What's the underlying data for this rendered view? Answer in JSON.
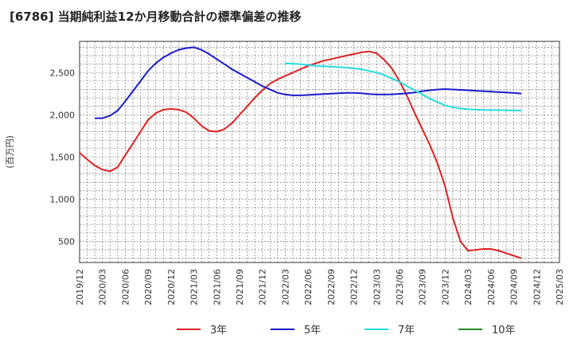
{
  "title": "[6786]  当期純利益12か月移動合計の標準偏差の推移",
  "chart_data": {
    "type": "line",
    "title": "[6786]  当期純利益12か月移動合計の標準偏差の推移",
    "xlabel": "",
    "ylabel": "(百万円)",
    "x_ticks": [
      "2019/12",
      "2020/03",
      "2020/06",
      "2020/09",
      "2020/12",
      "2021/03",
      "2021/06",
      "2021/09",
      "2021/12",
      "2022/03",
      "2022/06",
      "2022/09",
      "2022/12",
      "2023/03",
      "2023/06",
      "2023/09",
      "2023/12",
      "2024/03",
      "2024/06",
      "2024/09",
      "2024/12",
      "2025/03"
    ],
    "y_ticks": [
      500,
      1000,
      1500,
      2000,
      2500
    ],
    "y_tick_labels": [
      "500",
      "1,000",
      "1,500",
      "2,000",
      "2,500"
    ],
    "xlim": [
      "2019/12",
      "2025/03"
    ],
    "ylim": [
      250,
      2870
    ],
    "grid": true,
    "legend_position": "bottom",
    "series": [
      {
        "name": "3年",
        "color": "#dd2222",
        "points": [
          [
            "2019/12",
            1550
          ],
          [
            "2020/01",
            1470
          ],
          [
            "2020/02",
            1400
          ],
          [
            "2020/03",
            1350
          ],
          [
            "2020/04",
            1330
          ],
          [
            "2020/05",
            1380
          ],
          [
            "2020/06",
            1520
          ],
          [
            "2020/07",
            1660
          ],
          [
            "2020/08",
            1800
          ],
          [
            "2020/09",
            1940
          ],
          [
            "2020/10",
            2020
          ],
          [
            "2020/11",
            2060
          ],
          [
            "2020/12",
            2070
          ],
          [
            "2021/01",
            2060
          ],
          [
            "2021/02",
            2030
          ],
          [
            "2021/03",
            1960
          ],
          [
            "2021/04",
            1870
          ],
          [
            "2021/05",
            1810
          ],
          [
            "2021/06",
            1800
          ],
          [
            "2021/07",
            1830
          ],
          [
            "2021/08",
            1900
          ],
          [
            "2021/09",
            2000
          ],
          [
            "2021/10",
            2100
          ],
          [
            "2021/11",
            2200
          ],
          [
            "2021/12",
            2290
          ],
          [
            "2022/01",
            2370
          ],
          [
            "2022/02",
            2420
          ],
          [
            "2022/03",
            2460
          ],
          [
            "2022/04",
            2500
          ],
          [
            "2022/05",
            2540
          ],
          [
            "2022/06",
            2580
          ],
          [
            "2022/07",
            2610
          ],
          [
            "2022/08",
            2640
          ],
          [
            "2022/09",
            2660
          ],
          [
            "2022/10",
            2680
          ],
          [
            "2022/11",
            2700
          ],
          [
            "2022/12",
            2720
          ],
          [
            "2023/01",
            2740
          ],
          [
            "2023/02",
            2750
          ],
          [
            "2023/03",
            2730
          ],
          [
            "2023/04",
            2650
          ],
          [
            "2023/05",
            2550
          ],
          [
            "2023/06",
            2400
          ],
          [
            "2023/07",
            2220
          ],
          [
            "2023/08",
            2020
          ],
          [
            "2023/09",
            1830
          ],
          [
            "2023/10",
            1640
          ],
          [
            "2023/11",
            1420
          ],
          [
            "2023/12",
            1150
          ],
          [
            "2024/01",
            780
          ],
          [
            "2024/02",
            500
          ],
          [
            "2024/03",
            390
          ],
          [
            "2024/04",
            400
          ],
          [
            "2024/05",
            410
          ],
          [
            "2024/06",
            410
          ],
          [
            "2024/07",
            390
          ],
          [
            "2024/08",
            360
          ],
          [
            "2024/09",
            330
          ],
          [
            "2024/10",
            300
          ]
        ]
      },
      {
        "name": "5年",
        "color": "#1a1acc",
        "points": [
          [
            "2020/02",
            1960
          ],
          [
            "2020/03",
            1960
          ],
          [
            "2020/04",
            1990
          ],
          [
            "2020/05",
            2050
          ],
          [
            "2020/06",
            2160
          ],
          [
            "2020/07",
            2280
          ],
          [
            "2020/08",
            2400
          ],
          [
            "2020/09",
            2520
          ],
          [
            "2020/10",
            2610
          ],
          [
            "2020/11",
            2680
          ],
          [
            "2020/12",
            2730
          ],
          [
            "2021/01",
            2770
          ],
          [
            "2021/02",
            2790
          ],
          [
            "2021/03",
            2800
          ],
          [
            "2021/04",
            2770
          ],
          [
            "2021/05",
            2720
          ],
          [
            "2021/06",
            2660
          ],
          [
            "2021/07",
            2600
          ],
          [
            "2021/08",
            2540
          ],
          [
            "2021/09",
            2490
          ],
          [
            "2021/10",
            2440
          ],
          [
            "2021/11",
            2390
          ],
          [
            "2021/12",
            2340
          ],
          [
            "2022/01",
            2300
          ],
          [
            "2022/02",
            2260
          ],
          [
            "2022/03",
            2240
          ],
          [
            "2022/04",
            2230
          ],
          [
            "2022/05",
            2230
          ],
          [
            "2022/06",
            2235
          ],
          [
            "2022/07",
            2240
          ],
          [
            "2022/08",
            2245
          ],
          [
            "2022/09",
            2250
          ],
          [
            "2022/10",
            2255
          ],
          [
            "2022/11",
            2260
          ],
          [
            "2022/12",
            2260
          ],
          [
            "2023/01",
            2255
          ],
          [
            "2023/02",
            2245
          ],
          [
            "2023/03",
            2240
          ],
          [
            "2023/04",
            2240
          ],
          [
            "2023/05",
            2242
          ],
          [
            "2023/06",
            2248
          ],
          [
            "2023/07",
            2255
          ],
          [
            "2023/08",
            2265
          ],
          [
            "2023/09",
            2280
          ],
          [
            "2023/10",
            2290
          ],
          [
            "2023/11",
            2300
          ],
          [
            "2023/12",
            2305
          ],
          [
            "2024/01",
            2300
          ],
          [
            "2024/02",
            2295
          ],
          [
            "2024/03",
            2290
          ],
          [
            "2024/04",
            2285
          ],
          [
            "2024/05",
            2280
          ],
          [
            "2024/06",
            2275
          ],
          [
            "2024/07",
            2270
          ],
          [
            "2024/08",
            2265
          ],
          [
            "2024/09",
            2260
          ],
          [
            "2024/10",
            2250
          ]
        ]
      },
      {
        "name": "7年",
        "color": "#22dddd",
        "points": [
          [
            "2022/03",
            2610
          ],
          [
            "2022/04",
            2605
          ],
          [
            "2022/05",
            2600
          ],
          [
            "2022/06",
            2590
          ],
          [
            "2022/07",
            2580
          ],
          [
            "2022/08",
            2575
          ],
          [
            "2022/09",
            2570
          ],
          [
            "2022/10",
            2565
          ],
          [
            "2022/11",
            2560
          ],
          [
            "2022/12",
            2550
          ],
          [
            "2023/01",
            2540
          ],
          [
            "2023/02",
            2520
          ],
          [
            "2023/03",
            2500
          ],
          [
            "2023/04",
            2470
          ],
          [
            "2023/05",
            2430
          ],
          [
            "2023/06",
            2390
          ],
          [
            "2023/07",
            2340
          ],
          [
            "2023/08",
            2290
          ],
          [
            "2023/09",
            2240
          ],
          [
            "2023/10",
            2190
          ],
          [
            "2023/11",
            2150
          ],
          [
            "2023/12",
            2110
          ],
          [
            "2024/01",
            2090
          ],
          [
            "2024/02",
            2075
          ],
          [
            "2024/03",
            2065
          ],
          [
            "2024/04",
            2060
          ],
          [
            "2024/05",
            2058
          ],
          [
            "2024/06",
            2056
          ],
          [
            "2024/07",
            2055
          ],
          [
            "2024/08",
            2054
          ],
          [
            "2024/09",
            2053
          ],
          [
            "2024/10",
            2050
          ]
        ]
      },
      {
        "name": "10年",
        "color": "#228822",
        "points": []
      }
    ]
  }
}
